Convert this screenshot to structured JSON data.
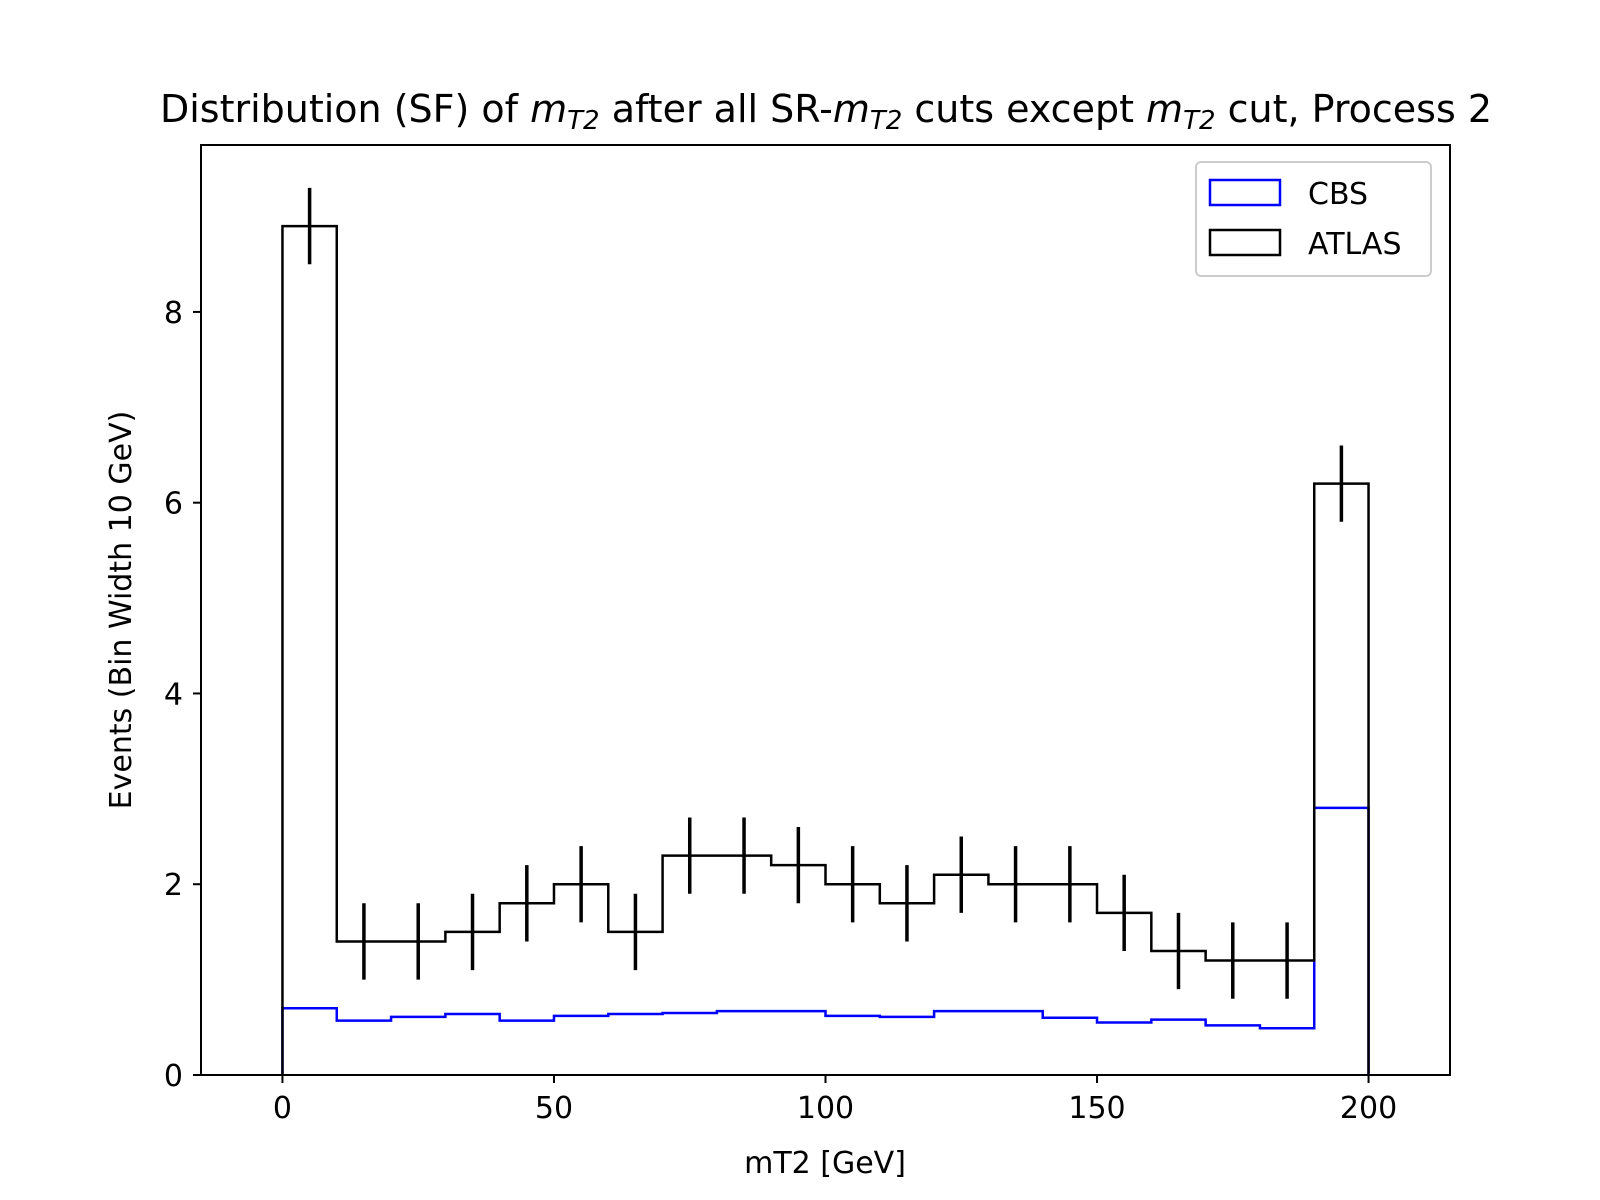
{
  "chart_data": {
    "type": "histogram-step",
    "title_parts": [
      {
        "text": "Distribution (SF) of ",
        "italic": false
      },
      {
        "text": "m",
        "italic": true
      },
      {
        "text": "T2",
        "italic": true,
        "sub": true
      },
      {
        "text": " after all SR-",
        "italic": false
      },
      {
        "text": "m",
        "italic": true
      },
      {
        "text": "T2",
        "italic": true,
        "sub": true
      },
      {
        "text": " cuts except ",
        "italic": false
      },
      {
        "text": "m",
        "italic": true
      },
      {
        "text": "T2",
        "italic": true,
        "sub": true
      },
      {
        "text": " cut, Process 2",
        "italic": false
      }
    ],
    "xlabel": "mT2 [GeV]",
    "ylabel": "Events (Bin Width 10 GeV)",
    "xlim": [
      -15,
      215
    ],
    "ylim": [
      0,
      9.75
    ],
    "xticks": [
      0,
      50,
      100,
      150,
      200
    ],
    "yticks": [
      0,
      2,
      4,
      6,
      8
    ],
    "bin_edges": [
      0,
      10,
      20,
      30,
      40,
      50,
      60,
      70,
      80,
      90,
      100,
      110,
      120,
      130,
      140,
      150,
      160,
      170,
      180,
      190,
      200
    ],
    "legend_position": "upper right",
    "series": [
      {
        "name": "CBS",
        "color": "#0000ff",
        "values": [
          0.7,
          0.57,
          0.61,
          0.64,
          0.57,
          0.62,
          0.64,
          0.65,
          0.67,
          0.67,
          0.62,
          0.61,
          0.67,
          0.67,
          0.6,
          0.55,
          0.58,
          0.52,
          0.49,
          2.8
        ]
      },
      {
        "name": "ATLAS",
        "color": "#000000",
        "values": [
          8.9,
          1.4,
          1.4,
          1.5,
          1.8,
          2.0,
          1.5,
          2.3,
          2.3,
          2.2,
          2.0,
          1.8,
          2.1,
          2.0,
          2.0,
          1.7,
          1.3,
          1.2,
          1.2,
          6.2
        ],
        "errors": [
          0.4,
          0.4,
          0.4,
          0.4,
          0.4,
          0.4,
          0.4,
          0.4,
          0.4,
          0.4,
          0.4,
          0.4,
          0.4,
          0.4,
          0.4,
          0.4,
          0.4,
          0.4,
          0.4,
          0.4
        ]
      }
    ]
  }
}
